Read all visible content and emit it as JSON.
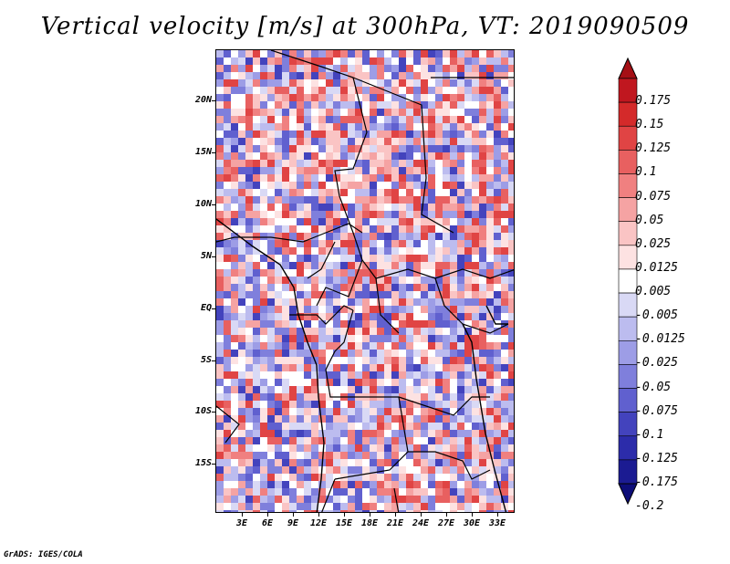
{
  "title": "Vertical velocity [m/s] at 300hPa, VT: 2019090509",
  "credit": "GrADS: IGES/COLA",
  "map": {
    "lat_labels": [
      "20N",
      "15N",
      "10N",
      "5N",
      "EQ",
      "5S",
      "10S",
      "15S"
    ],
    "lon_labels": [
      "3E",
      "6E",
      "9E",
      "12E",
      "15E",
      "18E",
      "21E",
      "24E",
      "27E",
      "30E",
      "33E"
    ]
  },
  "colorbar": {
    "labels": [
      "0.175",
      "0.15",
      "0.125",
      "0.1",
      "0.075",
      "0.05",
      "0.025",
      "0.0125",
      "0.005",
      "-0.005",
      "-0.0125",
      "-0.025",
      "-0.05",
      "-0.075",
      "-0.1",
      "-0.125",
      "-0.175",
      "-0.2"
    ],
    "colors": [
      "#a50f15",
      "#c0171f",
      "#d42a2a",
      "#e04444",
      "#e86060",
      "#f08080",
      "#f5a3a3",
      "#fac4c4",
      "#fde2e2",
      "#ffffff",
      "#d9d9f5",
      "#bcbcef",
      "#9d9de6",
      "#7f7fdc",
      "#6060cf",
      "#4343bd",
      "#2c2caa",
      "#1b1b92",
      "#0d0d78"
    ]
  }
}
